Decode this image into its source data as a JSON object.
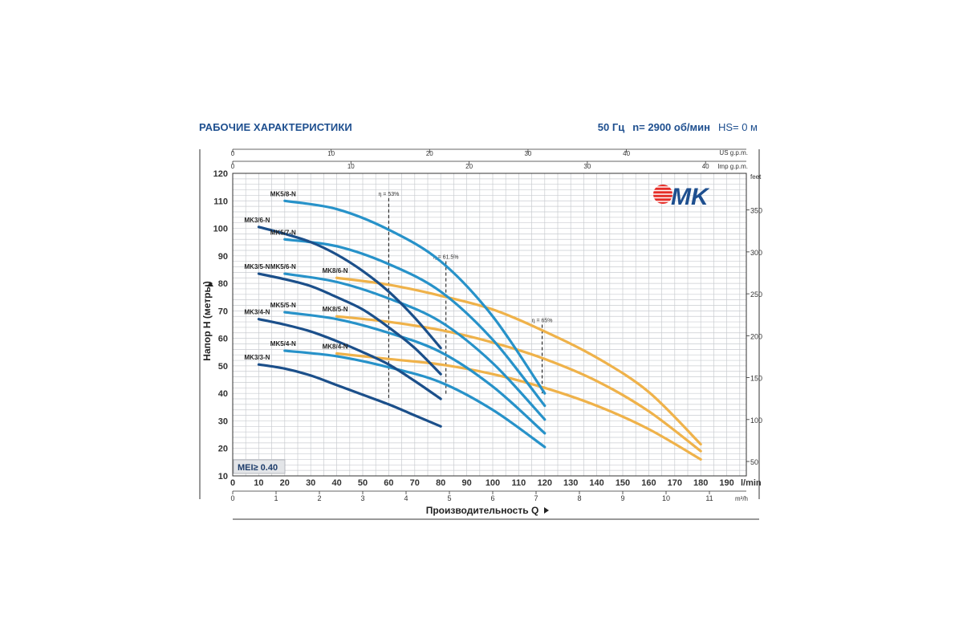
{
  "header": {
    "title": "РАБОЧИЕ ХАРАКТЕРИСТИКИ",
    "frequency": "50 Гц",
    "speed": "n= 2900 об/мин",
    "hs": "HS= 0 м"
  },
  "logo": {
    "text": "MK",
    "color": "#1e4f8f",
    "accent": "#e52d27"
  },
  "badge": {
    "label": "MEI≥ 0.40"
  },
  "colors": {
    "MK3": "#1b4f8a",
    "MK5": "#2792c9",
    "MK8": "#efb24a",
    "grid": "#c9ccd0",
    "title": "#1e4f8f"
  },
  "chart_data": {
    "type": "line",
    "title": "",
    "xlabel": "Производительность Q",
    "ylabel": "Напор H (метры)",
    "xlim": [
      0,
      195
    ],
    "ylim": [
      10,
      120
    ],
    "x_unit": "l/min",
    "x_ticks": [
      0,
      10,
      20,
      30,
      40,
      50,
      60,
      70,
      80,
      90,
      100,
      110,
      120,
      130,
      140,
      150,
      160,
      170,
      180,
      190
    ],
    "y_ticks": [
      10,
      20,
      30,
      40,
      50,
      60,
      70,
      80,
      90,
      100,
      110,
      120
    ],
    "secondary_axes": {
      "top_us_gpm": {
        "label": "US g.p.m.",
        "ticks": [
          0,
          10,
          20,
          30,
          40
        ]
      },
      "top_imp_gpm": {
        "label": "Imp g.p.m.",
        "ticks": [
          0,
          10,
          20,
          30,
          40
        ]
      },
      "bottom_m3h": {
        "label": "m³/h",
        "ticks": [
          0,
          1,
          2,
          3,
          4,
          5,
          6,
          7,
          8,
          9,
          10,
          11
        ]
      },
      "right_feet": {
        "label": "feet",
        "ticks": [
          50,
          100,
          150,
          200,
          250,
          300,
          350
        ]
      }
    },
    "efficiency_markers": [
      {
        "label": "η = 53%",
        "x": 60,
        "y_top": 111,
        "y_bottom": 38
      },
      {
        "label": "η = 61.5%",
        "x": 82,
        "y_top": 88,
        "y_bottom": 39
      },
      {
        "label": "η = 65%",
        "x": 119,
        "y_top": 65,
        "y_bottom": 40
      }
    ],
    "series": [
      {
        "name": "MK3/3-N",
        "family": "MK3",
        "x": [
          10,
          20,
          30,
          40,
          50,
          60,
          70,
          80
        ],
        "y": [
          50.5,
          49,
          46.5,
          43,
          39.5,
          36,
          32,
          28
        ]
      },
      {
        "name": "MK3/4-N",
        "family": "MK3",
        "x": [
          10,
          20,
          30,
          40,
          50,
          60,
          70,
          80
        ],
        "y": [
          67,
          65,
          62.5,
          59,
          55,
          50.5,
          44.5,
          38
        ]
      },
      {
        "name": "MK3/5-N",
        "family": "MK3",
        "x": [
          10,
          20,
          30,
          40,
          50,
          60,
          70,
          80
        ],
        "y": [
          83.5,
          81.5,
          79,
          75,
          70.5,
          64,
          56.5,
          47
        ]
      },
      {
        "name": "MK3/6-N",
        "family": "MK3",
        "x": [
          10,
          20,
          30,
          40,
          50,
          60,
          70,
          80
        ],
        "y": [
          100.5,
          98,
          95,
          90.5,
          84.5,
          77,
          67.5,
          56.5
        ]
      },
      {
        "name": "MK5/4-N",
        "family": "MK5",
        "x": [
          20,
          40,
          60,
          80,
          100,
          120
        ],
        "y": [
          55.5,
          53.5,
          49.5,
          44,
          34,
          20.5
        ]
      },
      {
        "name": "MK5/5-N",
        "family": "MK5",
        "x": [
          20,
          40,
          60,
          80,
          100,
          120
        ],
        "y": [
          69.5,
          67,
          62,
          55,
          42.5,
          25.5
        ]
      },
      {
        "name": "MK5/6-N",
        "family": "MK5",
        "x": [
          20,
          40,
          60,
          80,
          100,
          120
        ],
        "y": [
          83.5,
          80.5,
          74.5,
          66,
          51,
          30.5
        ]
      },
      {
        "name": "MK5/7-N",
        "family": "MK5",
        "x": [
          20,
          40,
          60,
          80,
          100,
          120
        ],
        "y": [
          96,
          93.5,
          87,
          77,
          59.5,
          35.5
        ]
      },
      {
        "name": "MK5/8-N",
        "family": "MK5",
        "x": [
          20,
          40,
          60,
          80,
          100,
          120
        ],
        "y": [
          110,
          107,
          99.5,
          88,
          68,
          40
        ]
      },
      {
        "name": "MK8/4-N",
        "family": "MK8",
        "x": [
          40,
          60,
          80,
          100,
          120,
          140,
          160,
          180
        ],
        "y": [
          54.5,
          52.5,
          50.5,
          47,
          42,
          35.5,
          27,
          16
        ]
      },
      {
        "name": "MK8/5-N",
        "family": "MK8",
        "x": [
          40,
          60,
          80,
          100,
          120,
          140,
          160,
          180
        ],
        "y": [
          68,
          66,
          63,
          58.5,
          52.5,
          44.5,
          33.5,
          19
        ]
      },
      {
        "name": "MK8/6-N",
        "family": "MK8",
        "x": [
          40,
          60,
          80,
          100,
          120,
          140,
          160,
          180
        ],
        "y": [
          82,
          79.5,
          75.5,
          70.5,
          62.5,
          53,
          40.5,
          21.5
        ]
      }
    ]
  }
}
